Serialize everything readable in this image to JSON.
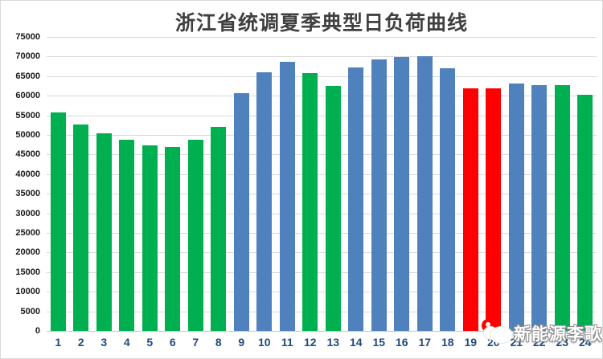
{
  "chart_data": {
    "type": "bar",
    "title": "浙江省统调夏季典型日负荷曲线",
    "xlabel": "",
    "ylabel": "",
    "categories": [
      "1",
      "2",
      "3",
      "4",
      "5",
      "6",
      "7",
      "8",
      "9",
      "10",
      "11",
      "12",
      "13",
      "14",
      "15",
      "16",
      "17",
      "18",
      "19",
      "20",
      "21",
      "22",
      "23",
      "24"
    ],
    "values": [
      55800,
      52700,
      50500,
      48700,
      47400,
      47000,
      48700,
      52000,
      60600,
      66000,
      68600,
      65800,
      62500,
      67200,
      69300,
      69900,
      70100,
      67100,
      61900,
      61900,
      63100,
      62700,
      62700,
      60300
    ],
    "bar_colors": [
      "#00B050",
      "#00B050",
      "#00B050",
      "#00B050",
      "#00B050",
      "#00B050",
      "#00B050",
      "#00B050",
      "#4F81BD",
      "#4F81BD",
      "#4F81BD",
      "#00B050",
      "#00B050",
      "#4F81BD",
      "#4F81BD",
      "#4F81BD",
      "#4F81BD",
      "#4F81BD",
      "#FF0000",
      "#FF0000",
      "#4F81BD",
      "#4F81BD",
      "#00B050",
      "#00B050"
    ],
    "ylim": [
      0,
      75000
    ],
    "ytick_step": 5000,
    "yticks": [
      0,
      5000,
      10000,
      15000,
      20000,
      25000,
      30000,
      35000,
      40000,
      45000,
      50000,
      55000,
      60000,
      65000,
      70000,
      75000
    ],
    "grid": true,
    "legend_position": "none"
  },
  "watermark": {
    "text": "新能源李歌"
  },
  "colors": {
    "green_bar": "#00B050",
    "blue_bar": "#4F81BD",
    "red_bar": "#FF0000",
    "gridline": "#D9D9D9",
    "axis_line": "#C6C6C6",
    "x_label": "#1F497D",
    "y_label": "#1A1A1A",
    "title": "#404040",
    "watermark_red": "#FF0000",
    "background": "#FFFFFF"
  }
}
